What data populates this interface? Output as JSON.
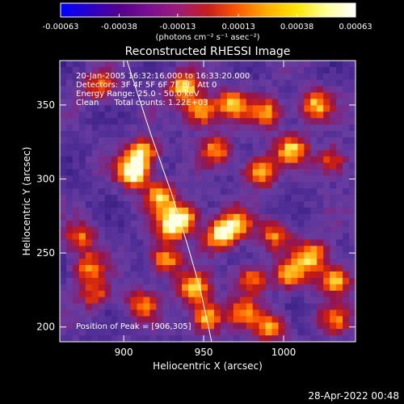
{
  "colorbar": {
    "ticks": [
      "-0.00063",
      "-0.00038",
      "-0.00013",
      "0.00013",
      "0.00038",
      "0.00063"
    ],
    "tick_values": [
      -0.00063,
      -0.00038,
      -0.00013,
      0.00013,
      0.00038,
      0.00063
    ],
    "range": [
      -0.00063,
      0.00063
    ],
    "units_label": "(photons cm⁻² s⁻¹ asec⁻²)",
    "colors": [
      "#0000ff",
      "#2a00c8",
      "#54008c",
      "#7a1090",
      "#9c1c78",
      "#c81e1e",
      "#ff5a00",
      "#ffb000",
      "#ffe600",
      "#ffff96",
      "#ffffff"
    ]
  },
  "annotations": {
    "time_range": "20-Jan-2005 16:32:16.000 to 16:33:20.000",
    "detectors": "Detectors: 3F 4F 5F 6F 7F 8F, Att 0",
    "energy": "Energy Range: 25.0 - 50.0 keV",
    "clean": "Clean      Total counts: 1.22E+03",
    "peak": "Position of Peak = [906,305]"
  },
  "footer": {
    "date": "28-Apr-2022 00:48"
  },
  "chart_data": {
    "type": "heatmap",
    "title": "Reconstructed RHESSI Image",
    "xlabel": "Heliocentric X (arcsec)",
    "ylabel": "Heliocentric Y (arcsec)",
    "xlim": [
      860,
      1045
    ],
    "ylim": [
      190,
      380
    ],
    "xticks": [
      900,
      950,
      1000
    ],
    "yticks": [
      200,
      250,
      300,
      350
    ],
    "peak": [
      906,
      305
    ],
    "limb": [
      [
        902,
        380
      ],
      [
        917,
        330
      ],
      [
        930,
        290
      ],
      [
        940,
        255
      ],
      [
        948,
        225
      ],
      [
        953,
        200
      ],
      [
        955,
        190
      ]
    ],
    "sources": [
      {
        "x": 906,
        "y": 305,
        "level": 1.0
      },
      {
        "x": 912,
        "y": 318,
        "level": 0.75
      },
      {
        "x": 923,
        "y": 288,
        "level": 0.7
      },
      {
        "x": 930,
        "y": 268,
        "level": 0.75
      },
      {
        "x": 938,
        "y": 275,
        "level": 0.65
      },
      {
        "x": 926,
        "y": 245,
        "level": 0.7
      },
      {
        "x": 944,
        "y": 226,
        "level": 0.75
      },
      {
        "x": 952,
        "y": 206,
        "level": 0.8
      },
      {
        "x": 912,
        "y": 215,
        "level": 0.55
      },
      {
        "x": 882,
        "y": 222,
        "level": 0.5
      },
      {
        "x": 873,
        "y": 260,
        "level": 0.55
      },
      {
        "x": 878,
        "y": 240,
        "level": 0.55
      },
      {
        "x": 938,
        "y": 362,
        "level": 0.75
      },
      {
        "x": 948,
        "y": 346,
        "level": 0.8
      },
      {
        "x": 968,
        "y": 350,
        "level": 0.7
      },
      {
        "x": 990,
        "y": 345,
        "level": 0.65
      },
      {
        "x": 1020,
        "y": 350,
        "level": 0.7
      },
      {
        "x": 958,
        "y": 320,
        "level": 0.6
      },
      {
        "x": 985,
        "y": 305,
        "level": 0.8
      },
      {
        "x": 1005,
        "y": 320,
        "level": 0.7
      },
      {
        "x": 1030,
        "y": 312,
        "level": 0.55
      },
      {
        "x": 970,
        "y": 270,
        "level": 0.65
      },
      {
        "x": 960,
        "y": 262,
        "level": 0.8
      },
      {
        "x": 995,
        "y": 262,
        "level": 0.6
      },
      {
        "x": 1018,
        "y": 248,
        "level": 0.75
      },
      {
        "x": 1032,
        "y": 232,
        "level": 0.8
      },
      {
        "x": 1005,
        "y": 236,
        "level": 0.65
      },
      {
        "x": 980,
        "y": 232,
        "level": 0.6
      },
      {
        "x": 992,
        "y": 200,
        "level": 0.65
      },
      {
        "x": 1032,
        "y": 205,
        "level": 0.5
      },
      {
        "x": 975,
        "y": 210,
        "level": 0.5
      },
      {
        "x": 885,
        "y": 362,
        "level": 0.55
      }
    ]
  }
}
